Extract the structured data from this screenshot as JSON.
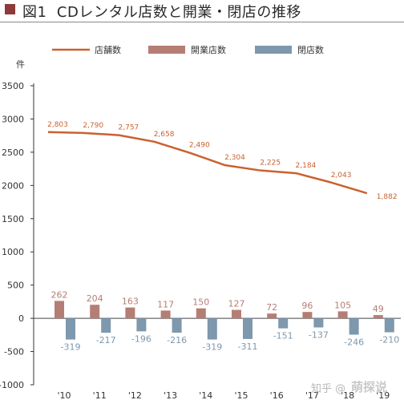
{
  "page": {
    "title": "CDレンタル店数と開業・閉店の推移",
    "figure_label": "図1",
    "title_square_color": "#8e3a3a",
    "watermark_left": "知乎 @",
    "watermark_right": "萌探说"
  },
  "chart_data": {
    "type": "bar",
    "title": "CDレンタル店数と開業・閉店の推移",
    "y_unit_label": "件",
    "categories": [
      "'10",
      "'11",
      "'12",
      "'13",
      "'14",
      "'15",
      "'16",
      "'17",
      "'18",
      "'19"
    ],
    "ylim": [
      -1000,
      3500
    ],
    "yticks": [
      3500,
      3000,
      2500,
      2000,
      1500,
      1000,
      500,
      0,
      -500,
      -1000
    ],
    "grid": false,
    "legend_position": "top",
    "series": [
      {
        "name": "店舗数",
        "kind": "line",
        "color": "#c9622f",
        "values": [
          2803,
          2790,
          2757,
          2658,
          2490,
          2304,
          2225,
          2184,
          2043,
          1882
        ],
        "labels": [
          "2,803",
          "2,790",
          "2,757",
          "2,658",
          "2,490",
          "2,304",
          "2,225",
          "2,184",
          "2,043",
          "1,882"
        ]
      },
      {
        "name": "開業店数",
        "kind": "bar",
        "color": "#b57e74",
        "values": [
          262,
          204,
          163,
          117,
          150,
          127,
          72,
          96,
          105,
          49
        ],
        "labels": [
          "262",
          "204",
          "163",
          "117",
          "150",
          "127",
          "72",
          "96",
          "105",
          "49"
        ]
      },
      {
        "name": "閉店数",
        "kind": "bar",
        "color": "#7e98ad",
        "values": [
          -319,
          -217,
          -196,
          -216,
          -319,
          -311,
          -151,
          -137,
          -246,
          -210
        ],
        "labels": [
          "-319",
          "-217",
          "-196",
          "-216",
          "-319",
          "-311",
          "-151",
          "-137",
          "-246",
          "-210"
        ]
      }
    ]
  }
}
